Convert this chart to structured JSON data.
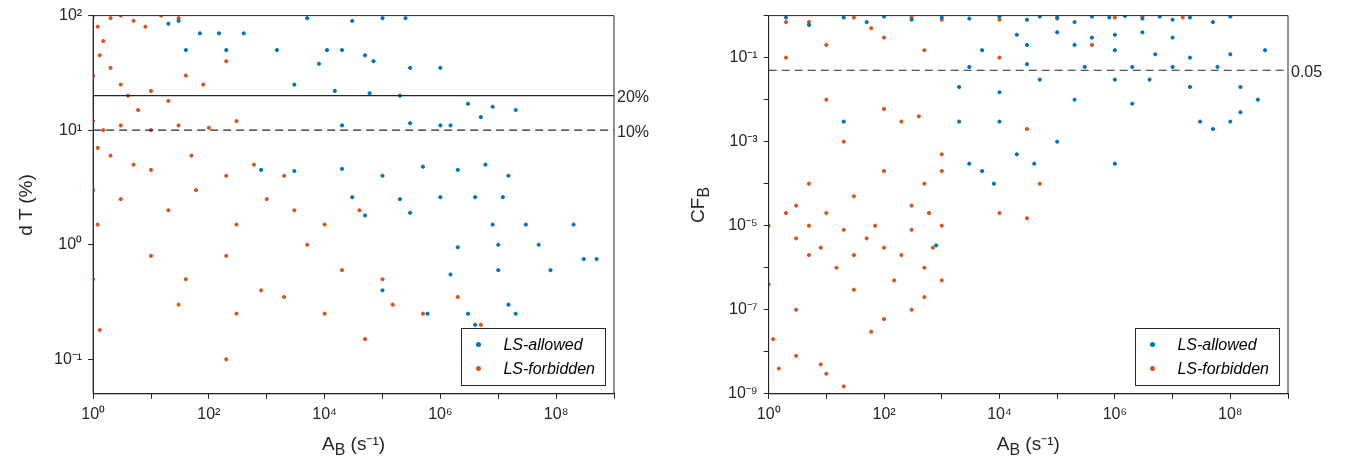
{
  "chart_data": [
    {
      "type": "scatter",
      "xlabel": "A$_{B}$ (s⁻¹)",
      "ylabel": "d T (%)",
      "log": "xy",
      "grid": false,
      "legend": "bottom right",
      "marker": "circle",
      "xlim": [
        1,
        1000000000.0
      ],
      "xticks": [
        {
          "value": 1,
          "label": "10⁰"
        },
        {
          "value": 10,
          "label": null
        },
        {
          "value": 100,
          "label": "10²"
        },
        {
          "value": 1000,
          "label": null
        },
        {
          "value": 10000.0,
          "label": "10⁴"
        },
        {
          "value": 100000.0,
          "label": null
        },
        {
          "value": 1000000.0,
          "label": "10⁶"
        },
        {
          "value": 10000000.0,
          "label": null
        },
        {
          "value": 100000000.0,
          "label": "10⁸"
        },
        {
          "value": 1000000000.0,
          "label": null
        }
      ],
      "ylim": [
        0.05,
        100
      ],
      "yticks": [
        {
          "value": 0.1,
          "label": "10⁻¹"
        },
        {
          "value": 1,
          "label": "10⁰"
        },
        {
          "value": 10,
          "label": "10¹"
        },
        {
          "value": 100,
          "label": "10²"
        }
      ],
      "ref_lines": [
        {
          "axis": "y",
          "value": 20,
          "label": "20%",
          "line_style": "solid",
          "color": "#262626"
        },
        {
          "axis": "y",
          "value": 10,
          "label": "10%",
          "line_style": "dashed",
          "color": "#262626"
        }
      ],
      "series": [
        {
          "name": "LS-allowed",
          "color": "#0072bd",
          "x": [
            20,
            30,
            70,
            150,
            400,
            40,
            200,
            1500,
            11000.0,
            20000.0,
            5000.0,
            30000.0,
            100000.0,
            250000.0,
            8000.0,
            50000.0,
            70000.0,
            300000.0,
            1000000.0,
            3000.0,
            15000.0,
            60000.0,
            200000.0,
            3000000.0,
            5000000.0,
            8000000.0,
            20000000.0,
            20000.0,
            300000.0,
            1000000.0,
            1500000.0,
            800,
            3000.0,
            20000.0,
            100000.0,
            500000.0,
            2000000.0,
            6000000.0,
            15000000.0,
            30000.0,
            200000.0,
            1000000.0,
            4000000.0,
            12000000.0,
            8000000.0,
            30000000.0,
            200000000.0,
            50000.0,
            300000.0,
            2000000.0,
            10000000.0,
            50000000.0,
            1500000.0,
            10000000.0,
            80000000.0,
            300000000.0,
            600000.0,
            3000000.0,
            20000000.0,
            4000000.0,
            15000000.0,
            500000000.0,
            100000.0
          ],
          "values": [
            85,
            90,
            70,
            70,
            70,
            50,
            50,
            50,
            50,
            50,
            95,
            90,
            95,
            95,
            38,
            45,
            40,
            35,
            35,
            25,
            22,
            21,
            20,
            17,
            13,
            16,
            15,
            11,
            11.5,
            11,
            11,
            4.5,
            4.4,
            4.6,
            4,
            4.8,
            4.5,
            5,
            4,
            2.6,
            2.5,
            2.6,
            2.6,
            2.6,
            1.5,
            1.5,
            1.5,
            1.8,
            1.9,
            0.95,
            1,
            1,
            0.55,
            0.6,
            0.6,
            0.75,
            0.25,
            0.25,
            0.25,
            0.2,
            0.3,
            0.75,
            0.4
          ]
        },
        {
          "name": "LS-forbidden",
          "color": "#d95319",
          "x": [
            1,
            1.2,
            1.5,
            2,
            3,
            5,
            8,
            15,
            30,
            1,
            1.3,
            2,
            3,
            4,
            6,
            10,
            20,
            40,
            80,
            200,
            1,
            1.5,
            3,
            10,
            30,
            100,
            300,
            1.2,
            2,
            5,
            10,
            50,
            200,
            600,
            2000,
            1,
            3,
            20,
            60,
            300,
            1000,
            3000,
            10000.0,
            40000.0,
            1.2,
            10,
            40,
            200,
            800,
            5000,
            20000.0,
            100000.0,
            1,
            1.3,
            30,
            300,
            2000,
            10000.0,
            50000.0,
            200,
            150000.0,
            500000.0,
            2000000.0,
            5000000.0
          ],
          "values": [
            100,
            80,
            60,
            95,
            100,
            90,
            80,
            100,
            95,
            30,
            45,
            35,
            25,
            20,
            15,
            22,
            18,
            30,
            25,
            40,
            12,
            10,
            11,
            10,
            11,
            10.5,
            12,
            7,
            6,
            5,
            4.5,
            6,
            4,
            5,
            4,
            3,
            2.5,
            2,
            3,
            1.5,
            2.5,
            2,
            1.5,
            2,
            1.5,
            0.8,
            0.5,
            0.8,
            0.4,
            1,
            0.6,
            0.5,
            0.5,
            0.18,
            0.3,
            0.25,
            0.35,
            0.25,
            0.15,
            0.1,
            0.3,
            0.25,
            0.35,
            0.2
          ]
        }
      ]
    },
    {
      "type": "scatter",
      "xlabel": "A$_{B}$ (s⁻¹)",
      "ylabel": "CF$_{B}$",
      "log": "xy",
      "grid": false,
      "legend": "bottom right",
      "marker": "circle",
      "xlim": [
        1,
        1000000000.0
      ],
      "xticks": [
        {
          "value": 1,
          "label": "10⁰"
        },
        {
          "value": 10,
          "label": null
        },
        {
          "value": 100,
          "label": "10²"
        },
        {
          "value": 1000,
          "label": null
        },
        {
          "value": 10000.0,
          "label": "10⁴"
        },
        {
          "value": 100000.0,
          "label": null
        },
        {
          "value": 1000000.0,
          "label": "10⁶"
        },
        {
          "value": 10000000.0,
          "label": null
        },
        {
          "value": 100000000.0,
          "label": "10⁸"
        },
        {
          "value": 1000000000.0,
          "label": null
        }
      ],
      "ylim": [
        1e-09,
        1
      ],
      "yticks": [
        {
          "value": 1e-09,
          "label": "10⁻⁹"
        },
        {
          "value": 1e-08,
          "label": null
        },
        {
          "value": 1e-07,
          "label": "10⁻⁷"
        },
        {
          "value": 1e-06,
          "label": null
        },
        {
          "value": 1e-05,
          "label": "10⁻⁵"
        },
        {
          "value": 0.0001,
          "label": null
        },
        {
          "value": 0.001,
          "label": "10⁻³"
        },
        {
          "value": 0.01,
          "label": null
        },
        {
          "value": 0.1,
          "label": "10⁻¹"
        },
        {
          "value": 1,
          "label": null
        }
      ],
      "ref_lines": [
        {
          "axis": "y",
          "value": 0.05,
          "label": "0.05",
          "line_style": "dashed",
          "color": "#262626"
        }
      ],
      "series": [
        {
          "name": "LS-allowed",
          "color": "#0072bd",
          "x": [
            2,
            5,
            20,
            50,
            100,
            300,
            1000,
            3000,
            10000.0,
            30000.0,
            50000.0,
            100000.0,
            200000.0,
            400000.0,
            800000.0,
            1500000.0,
            3000000.0,
            6000000.0,
            10000000.0,
            20000000.0,
            50000000.0,
            100000000.0,
            20000.0,
            100000.0,
            400000.0,
            1000000.0,
            3000000.0,
            10000000.0,
            5000.0,
            30000.0,
            200000.0,
            1000000.0,
            5000000.0,
            20000000.0,
            100000000.0,
            3000.0,
            30000.0,
            300000.0,
            2000000.0,
            10000000.0,
            60000000.0,
            2000.0,
            10000.0,
            50000.0,
            200000.0,
            1000000.0,
            4000000.0,
            20000000.0,
            150000000.0,
            400000000.0,
            150000000.0,
            300000000.0,
            100000000.0,
            50000000.0,
            30000000.0,
            2000.0,
            10000.0,
            40000.0,
            100000.0,
            1000000.0,
            2000000.0,
            20,
            3000.0,
            5000.0,
            20000.0,
            8000.0,
            800
          ],
          "values": [
            0.9,
            0.6,
            0.9,
            0.7,
            0.95,
            0.8,
            0.9,
            0.85,
            0.95,
            0.8,
            0.95,
            0.9,
            0.7,
            0.95,
            0.9,
            0.98,
            0.85,
            0.95,
            0.8,
            0.9,
            0.7,
            0.95,
            0.35,
            0.4,
            0.3,
            0.35,
            0.4,
            0.3,
            0.15,
            0.2,
            0.2,
            0.15,
            0.12,
            0.1,
            0.12,
            0.06,
            0.07,
            0.06,
            0.06,
            0.06,
            0.06,
            0.02,
            0.015,
            0.03,
            0.01,
            0.03,
            0.03,
            0.02,
            0.02,
            0.15,
            0.005,
            0.01,
            0.003,
            0.002,
            0.003,
            0.003,
            0.003,
            0.0003,
            0.001,
            0.0003,
            0.008,
            0.003,
            0.0003,
            0.0002,
            0.0005,
            0.0001,
            3.4e-06
          ]
        },
        {
          "name": "LS-forbidden",
          "color": "#d95319",
          "x": [
            2,
            5,
            30,
            60,
            300,
            1000,
            10000.0,
            100000.0,
            1000000.0,
            3000000.0,
            15000000.0,
            2,
            10,
            100,
            500,
            10000.0,
            400000.0,
            10,
            100,
            400,
            20,
            200,
            1000,
            30000.0,
            50000.0,
            100,
            500,
            1000,
            5,
            30,
            300,
            3,
            10000.0,
            30000.0,
            1,
            2,
            3,
            5,
            8,
            10,
            15,
            20,
            30,
            50,
            70,
            100,
            150,
            200,
            300,
            500,
            700,
            1000,
            1,
            3,
            5,
            30,
            60,
            100,
            300,
            500,
            1.5,
            3,
            8,
            10,
            20,
            1.2,
            1000,
            600
          ],
          "values": [
            0.7,
            0.7,
            0.9,
            0.5,
            0.9,
            0.8,
            0.8,
            0.85,
            0.9,
            0.95,
            0.9,
            0.1,
            0.2,
            0.3,
            0.15,
            0.1,
            0.2,
            0.01,
            0.006,
            0.004,
            0.001,
            0.003,
            0.0005,
            0.002,
            0.0001,
            0.0002,
            0.0001,
            0.0002,
            0.0001,
            5e-05,
            3e-05,
            3e-05,
            2e-05,
            1.5e-05,
            1e-05,
            2e-05,
            5e-06,
            1e-05,
            3e-06,
            2e-05,
            1e-06,
            8e-06,
            2e-06,
            5e-06,
            1e-05,
            3e-06,
            5e-07,
            2e-06,
            8e-06,
            1e-06,
            3e-06,
            5e-07,
            4e-07,
            1e-07,
            2e-06,
            3e-07,
            3e-08,
            6e-08,
            1e-07,
            2e-07,
            4e-09,
            8e-09,
            5e-09,
            3e-09,
            1.5e-09,
            2e-08,
            1e-05,
            2e-05
          ]
        }
      ]
    }
  ]
}
